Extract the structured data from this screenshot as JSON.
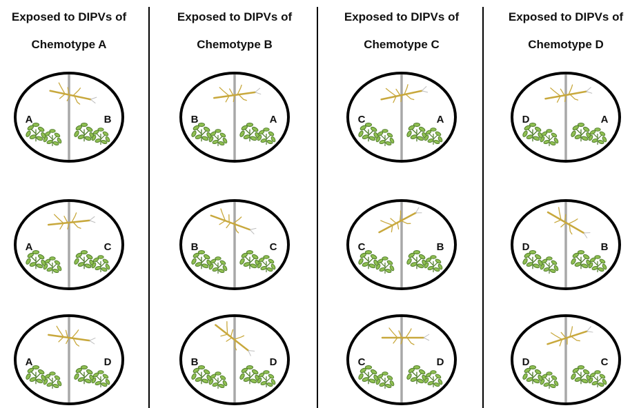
{
  "colors": {
    "dish_outline": "#000000",
    "divider": "#a8a8a8",
    "column_separator": "#000000",
    "insect": "#c8a83c",
    "plant_dark": "#4e7a2a",
    "plant_light": "#8fbf52"
  },
  "columns": [
    {
      "title_line1": "Exposed to DIPVs of",
      "title_line2": "Chemotype A",
      "dishes": [
        {
          "left_label": "A",
          "right_label": "B"
        },
        {
          "left_label": "A",
          "right_label": "C"
        },
        {
          "left_label": "A",
          "right_label": "D"
        }
      ]
    },
    {
      "title_line1": "Exposed to DIPVs of",
      "title_line2": "Chemotype B",
      "dishes": [
        {
          "left_label": "B",
          "right_label": "A"
        },
        {
          "left_label": "B",
          "right_label": "C"
        },
        {
          "left_label": "B",
          "right_label": "D"
        }
      ]
    },
    {
      "title_line1": "Exposed to DIPVs of",
      "title_line2": "Chemotype C",
      "dishes": [
        {
          "left_label": "C",
          "right_label": "A"
        },
        {
          "left_label": "C",
          "right_label": "B"
        },
        {
          "left_label": "C",
          "right_label": "D"
        }
      ]
    },
    {
      "title_line1": "Exposed to DIPVs of",
      "title_line2": "Chemotype D",
      "dishes": [
        {
          "left_label": "D",
          "right_label": "A"
        },
        {
          "left_label": "D",
          "right_label": "B"
        },
        {
          "left_label": "D",
          "right_label": "C"
        }
      ]
    }
  ]
}
